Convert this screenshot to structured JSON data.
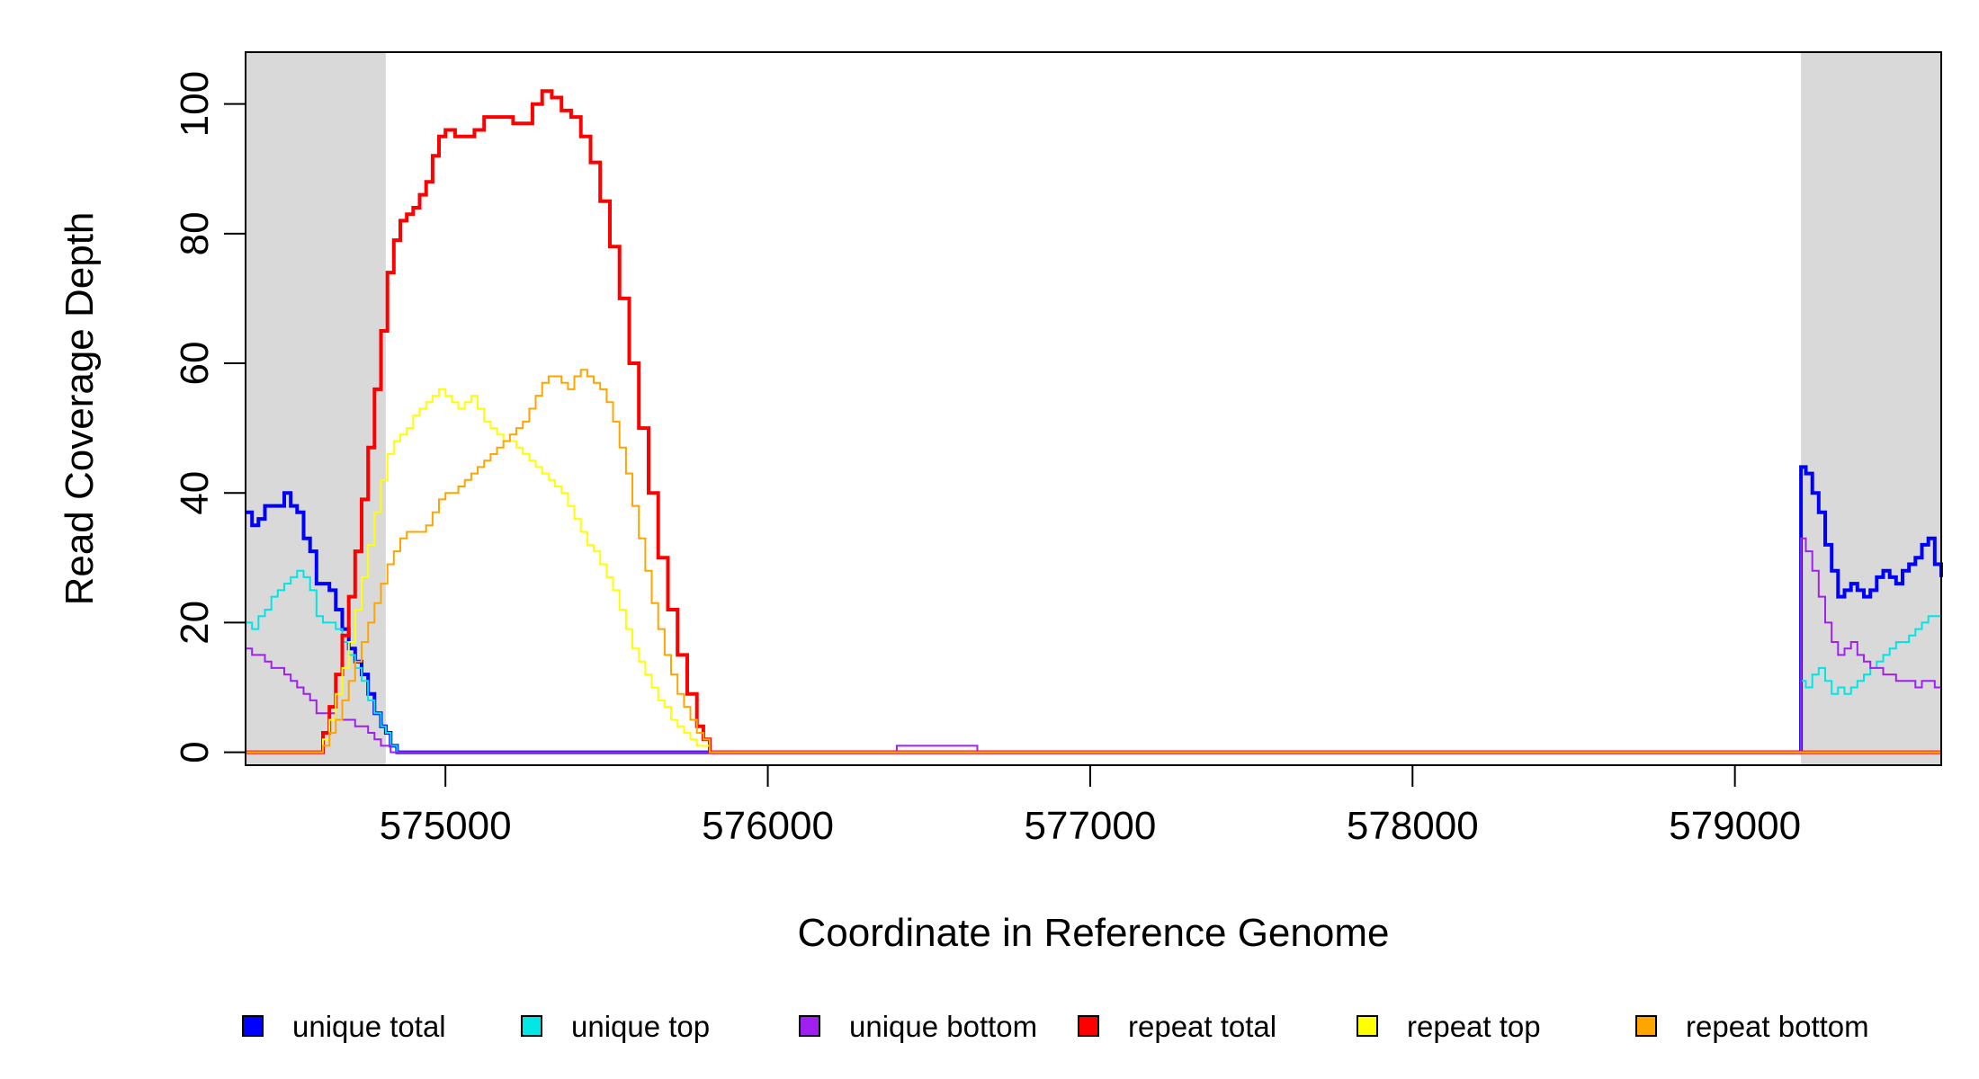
{
  "chart_data": {
    "type": "line",
    "title": "",
    "xlabel": "Coordinate in Reference Genome",
    "ylabel": "Read Coverage Depth",
    "xlim": [
      574380,
      579640
    ],
    "ylim": [
      -2,
      108
    ],
    "x_ticks": [
      575000,
      576000,
      577000,
      578000,
      579000
    ],
    "x_tick_labels": [
      "575000",
      "576000",
      "577000",
      "578000",
      "579000"
    ],
    "y_ticks": [
      0,
      20,
      40,
      60,
      80,
      100
    ],
    "y_tick_labels": [
      "0",
      "20",
      "40",
      "60",
      "80",
      "100"
    ],
    "grid": false,
    "legend_position": "bottom",
    "shaded_regions": [
      {
        "x_start": 574380,
        "x_end": 574815,
        "color": "#d9d9d9"
      },
      {
        "x_start": 579205,
        "x_end": 579640,
        "color": "#d9d9d9"
      }
    ],
    "series": [
      {
        "name": "unique total",
        "color": "#0000ff",
        "line_width": 4,
        "x": [
          574380,
          574400,
          574420,
          574440,
          574470,
          574500,
          574520,
          574540,
          574560,
          574580,
          574600,
          574620,
          574640,
          574660,
          574680,
          574700,
          574720,
          574740,
          574760,
          574780,
          574800,
          574815,
          574830,
          574850,
          575000,
          576000,
          576400,
          576650,
          577000,
          579200,
          579205,
          579220,
          579240,
          579260,
          579280,
          579300,
          579320,
          579340,
          579360,
          579380,
          579400,
          579420,
          579440,
          579460,
          579480,
          579500,
          579520,
          579540,
          579560,
          579580,
          579600,
          579620,
          579640
        ],
        "y": [
          37,
          35,
          36,
          38,
          38,
          40,
          38,
          37,
          33,
          31,
          26,
          26,
          25,
          22,
          19,
          16,
          14,
          12,
          9,
          6,
          4,
          3,
          1,
          0,
          0,
          0,
          0,
          0,
          0,
          0,
          44,
          43,
          40,
          37,
          32,
          28,
          24,
          25,
          26,
          25,
          24,
          25,
          27,
          28,
          27,
          26,
          28,
          29,
          30,
          32,
          33,
          29,
          27
        ]
      },
      {
        "name": "unique top",
        "color": "#00e5e5",
        "line_width": 2,
        "x": [
          574380,
          574400,
          574420,
          574440,
          574460,
          574480,
          574500,
          574520,
          574540,
          574560,
          574580,
          574600,
          574620,
          574640,
          574660,
          574680,
          574700,
          574720,
          574740,
          574760,
          574780,
          574800,
          574815,
          574830,
          574850,
          575000,
          576000,
          579200,
          579205,
          579220,
          579240,
          579260,
          579280,
          579300,
          579320,
          579340,
          579360,
          579380,
          579400,
          579420,
          579440,
          579460,
          579480,
          579500,
          579520,
          579540,
          579560,
          579580,
          579600,
          579620,
          579640
        ],
        "y": [
          20,
          19,
          21,
          22,
          24,
          25,
          26,
          27,
          28,
          27,
          25,
          21,
          20,
          20,
          19,
          17,
          15,
          13,
          11,
          8,
          6,
          4,
          3,
          1,
          0,
          0,
          0,
          0,
          11,
          10,
          12,
          13,
          11,
          9,
          10,
          9,
          10,
          11,
          12,
          13,
          14,
          15,
          16,
          17,
          17,
          18,
          19,
          20,
          21,
          21,
          20
        ]
      },
      {
        "name": "unique bottom",
        "color": "#a020f0",
        "line_width": 2,
        "x": [
          574380,
          574400,
          574420,
          574440,
          574460,
          574480,
          574500,
          574520,
          574540,
          574560,
          574580,
          574600,
          574620,
          574640,
          574660,
          574680,
          574700,
          574720,
          574740,
          574760,
          574780,
          574800,
          574830,
          574850,
          575000,
          576000,
          576400,
          576650,
          579200,
          579205,
          579220,
          579240,
          579260,
          579280,
          579300,
          579320,
          579340,
          579360,
          579380,
          579400,
          579420,
          579440,
          579460,
          579480,
          579500,
          579520,
          579540,
          579560,
          579580,
          579600,
          579620,
          579640
        ],
        "y": [
          16,
          15,
          15,
          14,
          13,
          13,
          12,
          11,
          10,
          9,
          8,
          6,
          6,
          6,
          5,
          5,
          5,
          4,
          4,
          3,
          2,
          1,
          0,
          0,
          0,
          0,
          1,
          0,
          0,
          33,
          31,
          28,
          24,
          20,
          17,
          15,
          16,
          17,
          15,
          14,
          13,
          13,
          12,
          12,
          11,
          11,
          11,
          10,
          11,
          11,
          10,
          8
        ]
      },
      {
        "name": "repeat total",
        "color": "#ff0000",
        "line_width": 4,
        "x": [
          574380,
          574600,
          574620,
          574640,
          574660,
          574680,
          574700,
          574720,
          574740,
          574760,
          574780,
          574800,
          574820,
          574840,
          574860,
          574880,
          574900,
          574920,
          574940,
          574960,
          574980,
          575000,
          575030,
          575060,
          575090,
          575120,
          575150,
          575180,
          575210,
          575240,
          575270,
          575300,
          575330,
          575360,
          575390,
          575420,
          575450,
          575480,
          575510,
          575540,
          575570,
          575600,
          575630,
          575660,
          575690,
          575720,
          575750,
          575780,
          575800,
          575820,
          576000,
          579640
        ],
        "y": [
          0,
          0,
          3,
          7,
          12,
          18,
          24,
          31,
          39,
          47,
          56,
          65,
          74,
          79,
          82,
          83,
          84,
          86,
          88,
          92,
          95,
          96,
          95,
          95,
          96,
          98,
          98,
          98,
          97,
          97,
          100,
          102,
          101,
          99,
          98,
          95,
          91,
          85,
          78,
          70,
          60,
          50,
          40,
          30,
          22,
          15,
          9,
          4,
          2,
          0,
          0,
          0
        ]
      },
      {
        "name": "repeat top",
        "color": "#ffff00",
        "line_width": 2,
        "x": [
          574380,
          574600,
          574620,
          574640,
          574660,
          574680,
          574700,
          574720,
          574740,
          574760,
          574780,
          574800,
          574820,
          574840,
          574860,
          574880,
          574900,
          574920,
          574940,
          574960,
          574980,
          575000,
          575020,
          575040,
          575060,
          575080,
          575100,
          575120,
          575140,
          575160,
          575180,
          575200,
          575220,
          575240,
          575260,
          575280,
          575300,
          575320,
          575340,
          575360,
          575380,
          575400,
          575420,
          575440,
          575460,
          575480,
          575500,
          575520,
          575540,
          575560,
          575580,
          575600,
          575620,
          575640,
          575660,
          575680,
          575700,
          575720,
          575740,
          575760,
          575780,
          575800,
          575820,
          576000,
          579640
        ],
        "y": [
          0,
          0,
          2,
          5,
          9,
          13,
          17,
          22,
          27,
          32,
          37,
          42,
          46,
          48,
          49,
          50,
          52,
          53,
          54,
          55,
          56,
          55,
          54,
          53,
          54,
          55,
          53,
          51,
          50,
          49,
          48,
          48,
          47,
          46,
          45,
          44,
          43,
          42,
          41,
          40,
          38,
          36,
          34,
          32,
          31,
          29,
          27,
          25,
          22,
          19,
          16,
          14,
          12,
          10,
          8,
          7,
          5,
          4,
          3,
          2,
          1,
          1,
          0,
          0,
          0
        ]
      },
      {
        "name": "repeat bottom",
        "color": "#ffa500",
        "line_width": 2,
        "x": [
          574380,
          574600,
          574620,
          574640,
          574660,
          574680,
          574700,
          574720,
          574740,
          574760,
          574780,
          574800,
          574820,
          574840,
          574860,
          574880,
          574900,
          574920,
          574940,
          574960,
          574980,
          575000,
          575020,
          575040,
          575060,
          575080,
          575100,
          575120,
          575140,
          575160,
          575180,
          575200,
          575220,
          575240,
          575260,
          575280,
          575300,
          575320,
          575340,
          575360,
          575380,
          575400,
          575420,
          575440,
          575460,
          575480,
          575500,
          575520,
          575540,
          575560,
          575580,
          575600,
          575620,
          575640,
          575660,
          575680,
          575700,
          575720,
          575740,
          575760,
          575780,
          575800,
          575820,
          576000,
          579640
        ],
        "y": [
          0,
          0,
          1,
          3,
          5,
          8,
          11,
          14,
          17,
          20,
          23,
          26,
          29,
          31,
          33,
          34,
          34,
          34,
          35,
          37,
          39,
          40,
          40,
          41,
          42,
          43,
          44,
          45,
          46,
          47,
          48,
          49,
          50,
          51,
          53,
          55,
          57,
          58,
          58,
          57,
          56,
          58,
          59,
          58,
          57,
          56,
          54,
          51,
          47,
          43,
          38,
          33,
          28,
          23,
          19,
          15,
          12,
          9,
          7,
          5,
          3,
          2,
          0,
          0,
          0
        ]
      }
    ]
  }
}
